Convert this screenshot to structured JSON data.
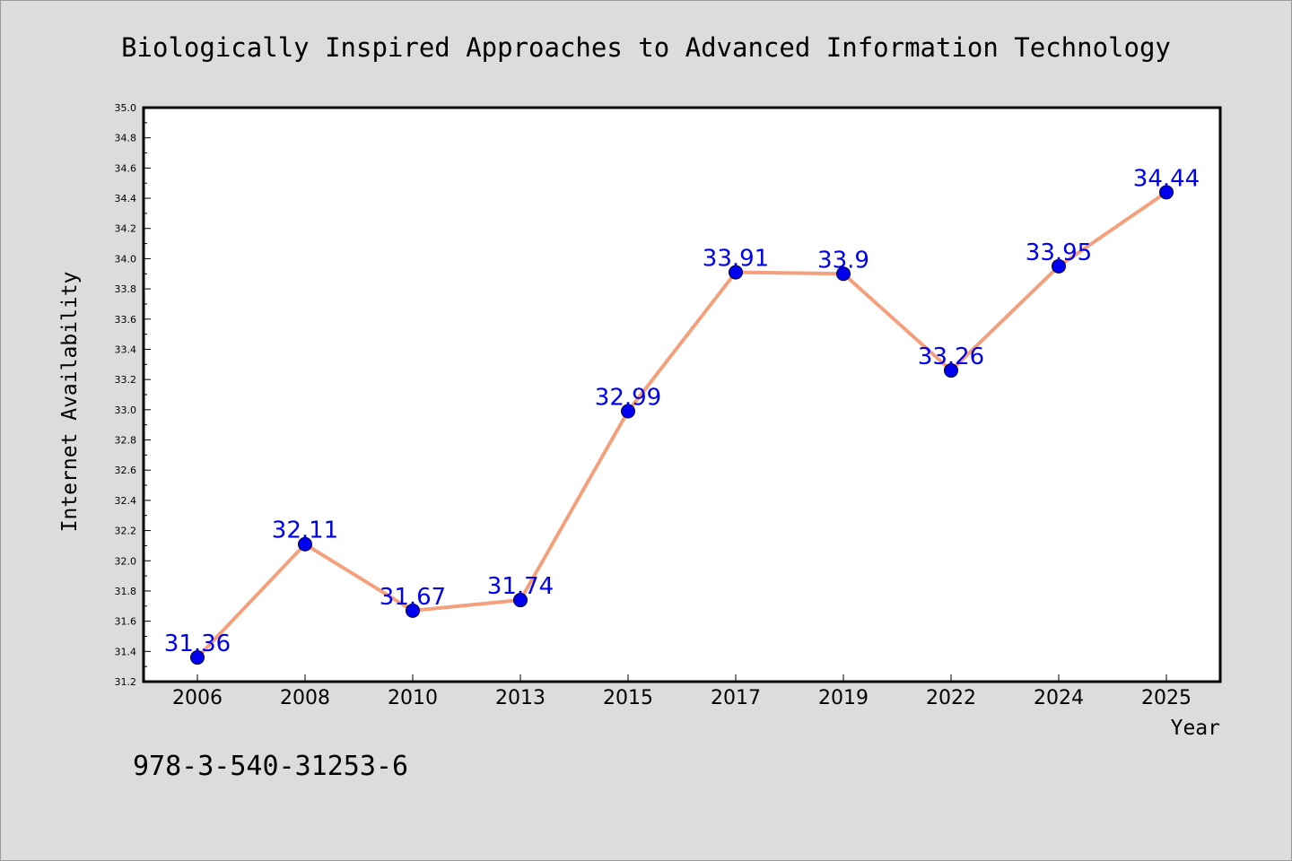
{
  "footer": {
    "isbn": "978-3-540-31253-6"
  },
  "colors": {
    "line": "#f4a07c",
    "marker": "#0000ee",
    "marker_edge": "#000033",
    "label": "#0000ee",
    "plot_bg": "#ffffff",
    "page_bg": "#dcdcdc"
  },
  "chart_data": {
    "type": "line",
    "title": "Biologically Inspired Approaches to Advanced Information Technology",
    "xlabel": "Year",
    "ylabel": "Internet Availability",
    "categories": [
      "2006",
      "2008",
      "2010",
      "2013",
      "2015",
      "2017",
      "2019",
      "2022",
      "2024",
      "2025"
    ],
    "series": [
      {
        "values": [
          31.36,
          32.11,
          31.67,
          31.74,
          32.99,
          33.91,
          33.9,
          33.26,
          33.95,
          34.44
        ]
      }
    ],
    "data_labels": [
      "31.36",
      "32.11",
      "31.67",
      "31.74",
      "32.99",
      "33.91",
      "33.9",
      "33.26",
      "33.95",
      "34.44"
    ],
    "ylim": [
      31.2,
      35.0
    ],
    "yticks": [
      "31.2",
      "31.4",
      "31.6",
      "31.8",
      "32.0",
      "32.2",
      "32.4",
      "32.6",
      "32.8",
      "33.0",
      "33.2",
      "33.4",
      "33.6",
      "33.8",
      "34.0",
      "34.2",
      "34.4",
      "34.6",
      "34.8",
      "35.0"
    ],
    "grid": false,
    "legend": "none"
  }
}
